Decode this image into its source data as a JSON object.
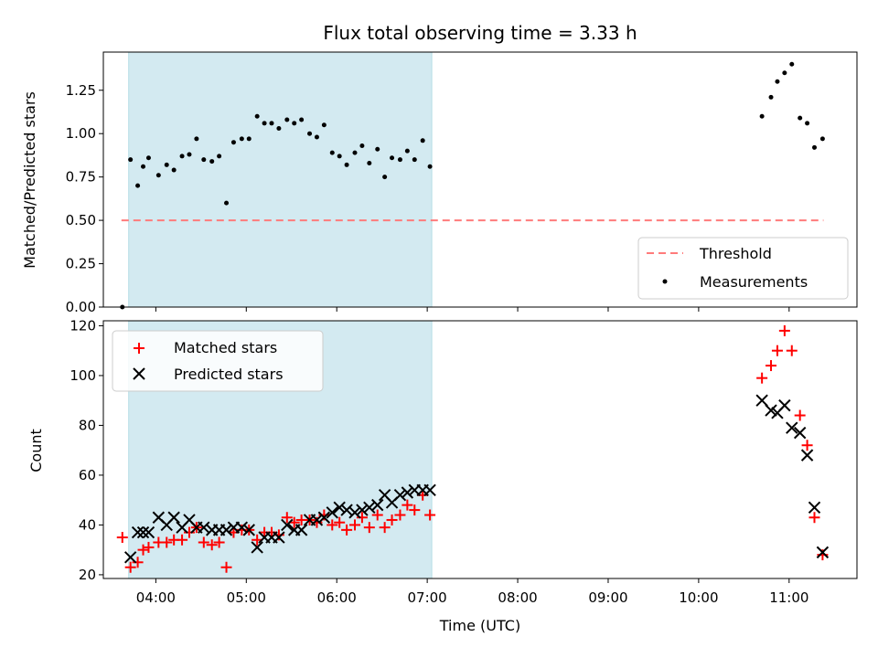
{
  "chart_data": [
    {
      "type": "scatter",
      "title": "Flux total observing time = 3.33 h",
      "ylabel": "Matched/Predicted stars",
      "xlim": [
        3.42,
        11.75
      ],
      "ylim": [
        0,
        1.47
      ],
      "yticks": [
        "0.00",
        "0.25",
        "0.50",
        "0.75",
        "1.00",
        "1.25"
      ],
      "yticks_values": [
        0,
        0.25,
        0.5,
        0.75,
        1.0,
        1.25
      ],
      "shaded_span": [
        3.7,
        7.05
      ],
      "threshold": {
        "name": "Threshold",
        "y": 0.5,
        "x_range": [
          3.62,
          11.38
        ],
        "color": "#ff7b7b"
      },
      "legend": [
        "Threshold",
        "Measurements"
      ],
      "legend_position": "lower right",
      "series": [
        {
          "name": "Measurements",
          "color": "#000000",
          "points": [
            [
              3.63,
              0.0
            ],
            [
              3.72,
              0.85
            ],
            [
              3.8,
              0.7
            ],
            [
              3.86,
              0.81
            ],
            [
              3.92,
              0.86
            ],
            [
              4.03,
              0.76
            ],
            [
              4.12,
              0.82
            ],
            [
              4.2,
              0.79
            ],
            [
              4.29,
              0.87
            ],
            [
              4.37,
              0.88
            ],
            [
              4.45,
              0.97
            ],
            [
              4.53,
              0.85
            ],
            [
              4.62,
              0.84
            ],
            [
              4.7,
              0.87
            ],
            [
              4.78,
              0.6
            ],
            [
              4.86,
              0.95
            ],
            [
              4.95,
              0.97
            ],
            [
              5.03,
              0.97
            ],
            [
              5.12,
              1.1
            ],
            [
              5.2,
              1.06
            ],
            [
              5.28,
              1.06
            ],
            [
              5.36,
              1.03
            ],
            [
              5.45,
              1.08
            ],
            [
              5.53,
              1.06
            ],
            [
              5.61,
              1.08
            ],
            [
              5.7,
              1.0
            ],
            [
              5.78,
              0.98
            ],
            [
              5.86,
              1.05
            ],
            [
              5.95,
              0.89
            ],
            [
              6.03,
              0.87
            ],
            [
              6.11,
              0.82
            ],
            [
              6.2,
              0.89
            ],
            [
              6.28,
              0.93
            ],
            [
              6.36,
              0.83
            ],
            [
              6.45,
              0.91
            ],
            [
              6.53,
              0.75
            ],
            [
              6.61,
              0.86
            ],
            [
              6.7,
              0.85
            ],
            [
              6.78,
              0.9
            ],
            [
              6.86,
              0.85
            ],
            [
              6.95,
              0.96
            ],
            [
              7.03,
              0.81
            ],
            [
              10.7,
              1.1
            ],
            [
              10.8,
              1.21
            ],
            [
              10.87,
              1.3
            ],
            [
              10.95,
              1.35
            ],
            [
              11.03,
              1.4
            ],
            [
              11.12,
              1.09
            ],
            [
              11.2,
              1.06
            ],
            [
              11.28,
              0.92
            ],
            [
              11.37,
              0.97
            ]
          ]
        }
      ]
    },
    {
      "type": "scatter",
      "xlabel": "Time (UTC)",
      "ylabel": "Count",
      "xlim": [
        3.42,
        11.75
      ],
      "ylim": [
        18.5,
        122
      ],
      "xticks": [
        "04:00",
        "05:00",
        "06:00",
        "07:00",
        "08:00",
        "09:00",
        "10:00",
        "11:00"
      ],
      "xticks_values": [
        4,
        5,
        6,
        7,
        8,
        9,
        10,
        11
      ],
      "yticks": [
        "20",
        "40",
        "60",
        "80",
        "100",
        "120"
      ],
      "yticks_values": [
        20,
        40,
        60,
        80,
        100,
        120
      ],
      "shaded_span": [
        3.7,
        7.05
      ],
      "legend": [
        "Matched stars",
        "Predicted stars"
      ],
      "legend_position": "upper left",
      "series": [
        {
          "name": "Matched stars",
          "marker": "+",
          "color": "#ff0000",
          "points": [
            [
              3.63,
              35
            ],
            [
              3.72,
              23
            ],
            [
              3.8,
              25
            ],
            [
              3.86,
              30
            ],
            [
              3.92,
              31
            ],
            [
              4.03,
              33
            ],
            [
              4.12,
              33
            ],
            [
              4.2,
              34
            ],
            [
              4.29,
              34
            ],
            [
              4.37,
              37
            ],
            [
              4.45,
              39
            ],
            [
              4.53,
              33
            ],
            [
              4.62,
              32
            ],
            [
              4.7,
              33
            ],
            [
              4.78,
              23
            ],
            [
              4.86,
              37
            ],
            [
              4.95,
              38
            ],
            [
              5.03,
              38
            ],
            [
              5.12,
              34
            ],
            [
              5.2,
              37
            ],
            [
              5.28,
              37
            ],
            [
              5.36,
              36
            ],
            [
              5.45,
              43
            ],
            [
              5.53,
              41
            ],
            [
              5.61,
              42
            ],
            [
              5.7,
              42
            ],
            [
              5.78,
              41
            ],
            [
              5.86,
              44
            ],
            [
              5.95,
              40
            ],
            [
              6.03,
              41
            ],
            [
              6.11,
              38
            ],
            [
              6.2,
              40
            ],
            [
              6.28,
              43
            ],
            [
              6.36,
              39
            ],
            [
              6.45,
              44
            ],
            [
              6.53,
              39
            ],
            [
              6.61,
              42
            ],
            [
              6.7,
              44
            ],
            [
              6.78,
              48
            ],
            [
              6.86,
              46
            ],
            [
              6.95,
              52
            ],
            [
              7.03,
              44
            ],
            [
              10.7,
              99
            ],
            [
              10.8,
              104
            ],
            [
              10.87,
              110
            ],
            [
              10.95,
              118
            ],
            [
              11.03,
              110
            ],
            [
              11.12,
              84
            ],
            [
              11.2,
              72
            ],
            [
              11.28,
              43
            ],
            [
              11.37,
              28
            ]
          ]
        },
        {
          "name": "Predicted stars",
          "marker": "x",
          "color": "#000000",
          "points": [
            [
              3.72,
              27
            ],
            [
              3.8,
              37
            ],
            [
              3.86,
              37
            ],
            [
              3.92,
              37
            ],
            [
              4.03,
              43
            ],
            [
              4.12,
              40
            ],
            [
              4.2,
              43
            ],
            [
              4.29,
              39
            ],
            [
              4.37,
              42
            ],
            [
              4.45,
              39
            ],
            [
              4.53,
              39
            ],
            [
              4.62,
              38
            ],
            [
              4.7,
              38
            ],
            [
              4.78,
              38
            ],
            [
              4.86,
              39
            ],
            [
              4.95,
              39
            ],
            [
              5.03,
              38
            ],
            [
              5.12,
              31
            ],
            [
              5.2,
              35
            ],
            [
              5.28,
              35
            ],
            [
              5.36,
              35
            ],
            [
              5.45,
              40
            ],
            [
              5.53,
              38
            ],
            [
              5.61,
              38
            ],
            [
              5.7,
              42
            ],
            [
              5.78,
              42
            ],
            [
              5.86,
              43
            ],
            [
              5.95,
              45
            ],
            [
              6.03,
              47
            ],
            [
              6.11,
              46
            ],
            [
              6.2,
              45
            ],
            [
              6.28,
              46
            ],
            [
              6.36,
              47
            ],
            [
              6.45,
              48
            ],
            [
              6.53,
              52
            ],
            [
              6.61,
              49
            ],
            [
              6.7,
              52
            ],
            [
              6.78,
              53
            ],
            [
              6.86,
              54
            ],
            [
              6.95,
              54
            ],
            [
              7.03,
              54
            ],
            [
              10.7,
              90
            ],
            [
              10.8,
              86
            ],
            [
              10.87,
              85
            ],
            [
              10.95,
              88
            ],
            [
              11.03,
              79
            ],
            [
              11.12,
              77
            ],
            [
              11.2,
              68
            ],
            [
              11.28,
              47
            ],
            [
              11.37,
              29
            ]
          ]
        }
      ]
    }
  ]
}
